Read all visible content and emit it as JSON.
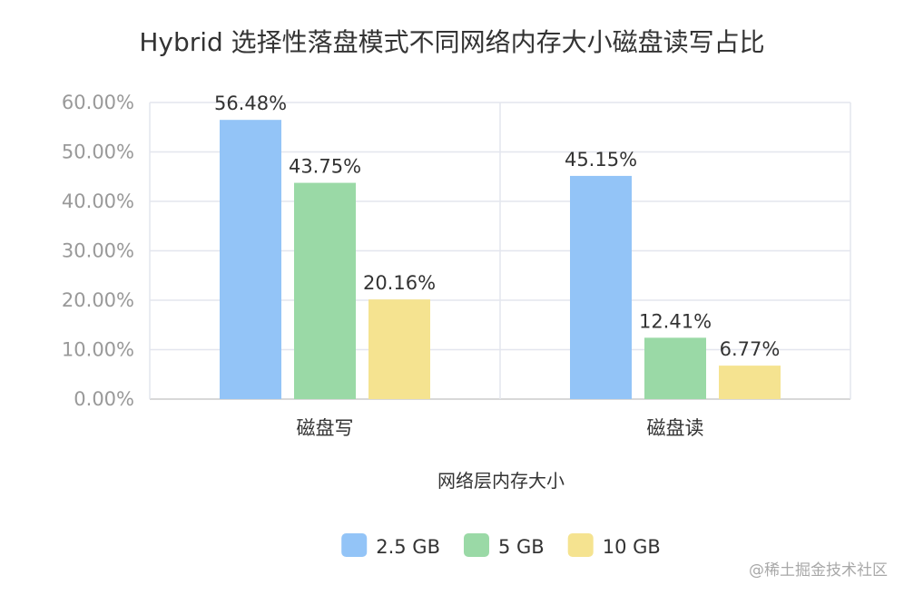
{
  "chart_data": {
    "type": "bar",
    "title": "Hybrid 选择性落盘模式不同网络内存大小磁盘读写占比",
    "xlabel": "网络层内存大小",
    "ylabel": "",
    "categories": [
      "磁盘写",
      "磁盘读"
    ],
    "series": [
      {
        "name": "2.5 GB",
        "values": [
          56.48,
          45.15
        ],
        "labels": [
          "56.48%",
          "45.15%"
        ],
        "color": "#93c4f7"
      },
      {
        "name": "5 GB",
        "values": [
          43.75,
          12.41
        ],
        "labels": [
          "43.75%",
          "12.41%"
        ],
        "color": "#9ad9a6"
      },
      {
        "name": "10 GB",
        "values": [
          20.16,
          6.77
        ],
        "labels": [
          "20.16%",
          "6.77%"
        ],
        "color": "#f5e390"
      }
    ],
    "ylim": [
      0,
      60
    ],
    "yticks": [
      0,
      10,
      20,
      30,
      40,
      50,
      60
    ],
    "ytick_labels": [
      "0.00%",
      "10.00%",
      "20.00%",
      "30.00%",
      "40.00%",
      "50.00%",
      "60.00%"
    ],
    "grid": true,
    "legend_position": "bottom-center"
  },
  "watermark": "@稀土掘金技术社区"
}
